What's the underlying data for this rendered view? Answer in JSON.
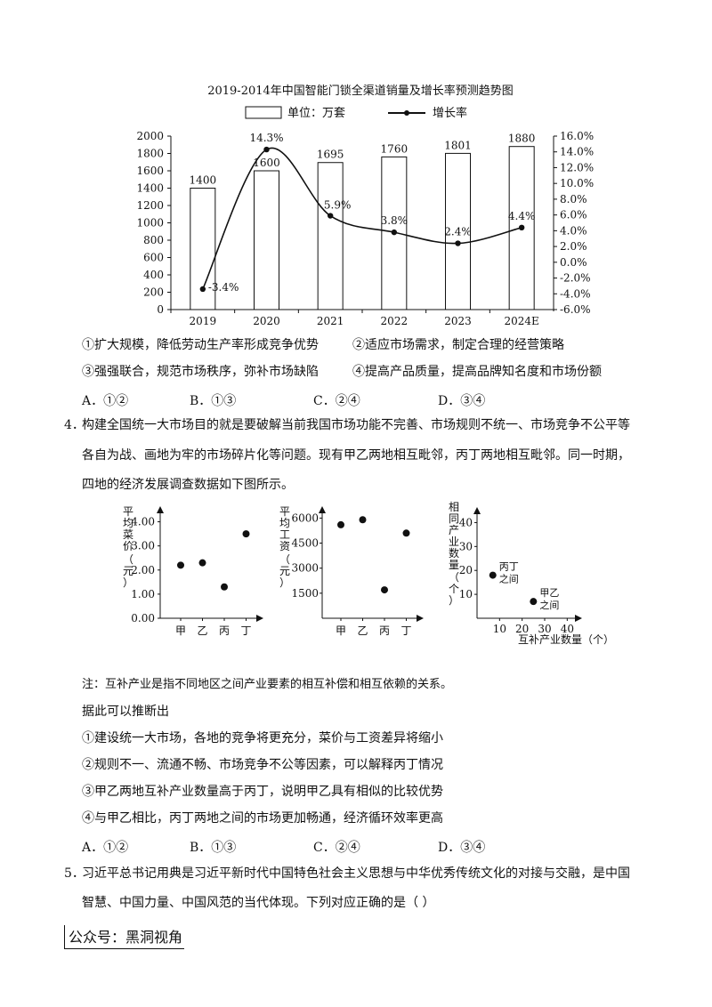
{
  "chart1": {
    "title": "2019-2014年中国智能门锁全渠道销量及增长率预测趋势图",
    "legend_bar": "单位：万套",
    "legend_line": "增长率",
    "left_ticks": [
      "0",
      "200",
      "400",
      "600",
      "800",
      "1000",
      "1200",
      "1400",
      "1600",
      "1800",
      "2000"
    ],
    "right_ticks": [
      "-6.0%",
      "-4.0%",
      "-2.0%",
      "0.0%",
      "2.0%",
      "4.0%",
      "6.0%",
      "8.0%",
      "10.0%",
      "12.0%",
      "14.0%",
      "16.0%"
    ]
  },
  "chart_data": [
    {
      "type": "bar",
      "title": "2019-2014年中国智能门锁全渠道销量及增长率预测趋势图",
      "categories": [
        "2019",
        "2020",
        "2021",
        "2022",
        "2023",
        "2024E"
      ],
      "series": [
        {
          "name": "单位：万套",
          "type": "bar",
          "axis": "left",
          "values": [
            1400,
            1600,
            1695,
            1760,
            1801,
            1880
          ]
        },
        {
          "name": "增长率",
          "type": "line",
          "axis": "right",
          "values": [
            -3.4,
            14.3,
            5.9,
            3.8,
            2.4,
            4.4
          ],
          "labels": [
            "-3.4%",
            "14.3%",
            "5.9%",
            "3.8%",
            "2.4%",
            "4.4%"
          ]
        }
      ],
      "ylim_left": [
        0,
        2000
      ],
      "ylim_right": [
        -6,
        16
      ]
    },
    {
      "type": "scatter",
      "ylabel": "平均菜价（元）",
      "categories": [
        "甲",
        "乙",
        "丙",
        "丁"
      ],
      "values": [
        2.2,
        2.3,
        1.3,
        3.5
      ],
      "yticks": [
        "0.00",
        "1.00",
        "2.00",
        "3.00",
        "4.00"
      ],
      "ylim": [
        0,
        4.5
      ]
    },
    {
      "type": "scatter",
      "ylabel": "平均工资（元）",
      "categories": [
        "甲",
        "乙",
        "丙",
        "丁"
      ],
      "values": [
        5600,
        5900,
        1700,
        5100
      ],
      "yticks": [
        "1500",
        "3000",
        "4500",
        "6000"
      ],
      "ylim": [
        0,
        6500
      ]
    },
    {
      "type": "scatter",
      "xlabel": "互补产业数量（个）",
      "ylabel": "相同产业数量（个）",
      "points": [
        {
          "label": "丙丁之间",
          "x": 7,
          "y": 18
        },
        {
          "label": "甲乙之间",
          "x": 25,
          "y": 7
        }
      ],
      "xticks": [
        "10",
        "20",
        "30",
        "40"
      ],
      "yticks": [
        "10",
        "20",
        "30",
        "40"
      ],
      "xlim": [
        0,
        45
      ],
      "ylim": [
        0,
        45
      ]
    }
  ],
  "q3": {
    "s1": "①扩大规模，降低劳动生产率形成竞争优势",
    "s2": "②适应市场需求，制定合理的经营策略",
    "s3": "③强强联合，规范市场秩序，弥补市场缺陷",
    "s4": "④提高产品质量，提高品牌知名度和市场份额",
    "opts": [
      "A．①②",
      "B．①③",
      "C．②④",
      "D．③④"
    ]
  },
  "q4": {
    "number": "4．",
    "line1": "构建全国统一大市场目的就是要破解当前我国市场功能不完善、市场规则不统一、市场竞争不公平等",
    "line2": "各自为战、画地为牢的市场碎片化等问题。现有甲乙两地相互毗邻，丙丁两地相互毗邻。同一时期，",
    "line3": "四地的经济发展调查数据如下图所示。",
    "note": "注：互补产业是指不同地区之间产业要素的相互补偿和相互依赖的关系。",
    "infer": "据此可以推断出",
    "s1": "①建设统一大市场，各地的竞争将更充分，菜价与工资差异将缩小",
    "s2": "②规则不一、流通不畅、市场竞争不公等因素，可以解释丙丁情况",
    "s3": "③甲乙两地互补产业数量高于丙丁，说明甲乙具有相似的比较优势",
    "s4": "④与甲乙相比，丙丁两地之间的市场更加畅通，经济循环效率更高",
    "opts": [
      "A．①②",
      "B．①③",
      "C．②④",
      "D．③④"
    ]
  },
  "q5": {
    "number": "5．",
    "line1": "习近平总书记用典是习近平新时代中国特色社会主义思想与中华优秀传统文化的对接与交融，是中国",
    "line2": "智慧、中国力量、中国风范的当代体现。下列对应正确的是（    ）"
  },
  "watermark": "公众号：黑洞视角"
}
